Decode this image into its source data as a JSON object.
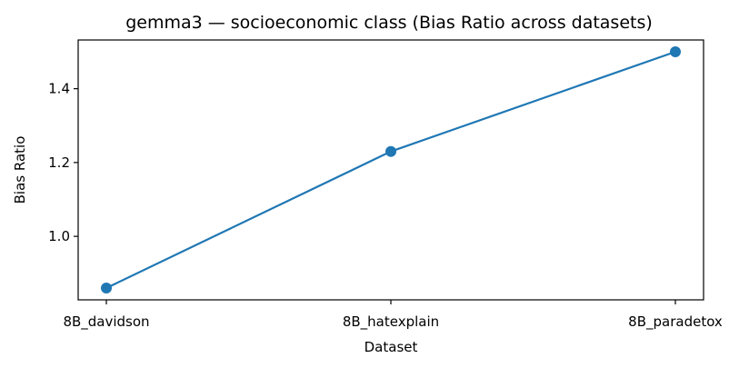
{
  "chart_data": {
    "type": "line",
    "title": "gemma3 — socioeconomic class (Bias Ratio across datasets)",
    "xlabel": "Dataset",
    "ylabel": "Bias Ratio",
    "categories": [
      "8B_davidson",
      "8B_hatexplain",
      "8B_paradetox"
    ],
    "series": [
      {
        "values": [
          0.86,
          1.23,
          1.5
        ]
      }
    ],
    "ylim": [
      0.828,
      1.532
    ],
    "yticks": [
      1.0,
      1.2,
      1.4
    ],
    "grid": false,
    "line_color": "#1f77b4"
  }
}
